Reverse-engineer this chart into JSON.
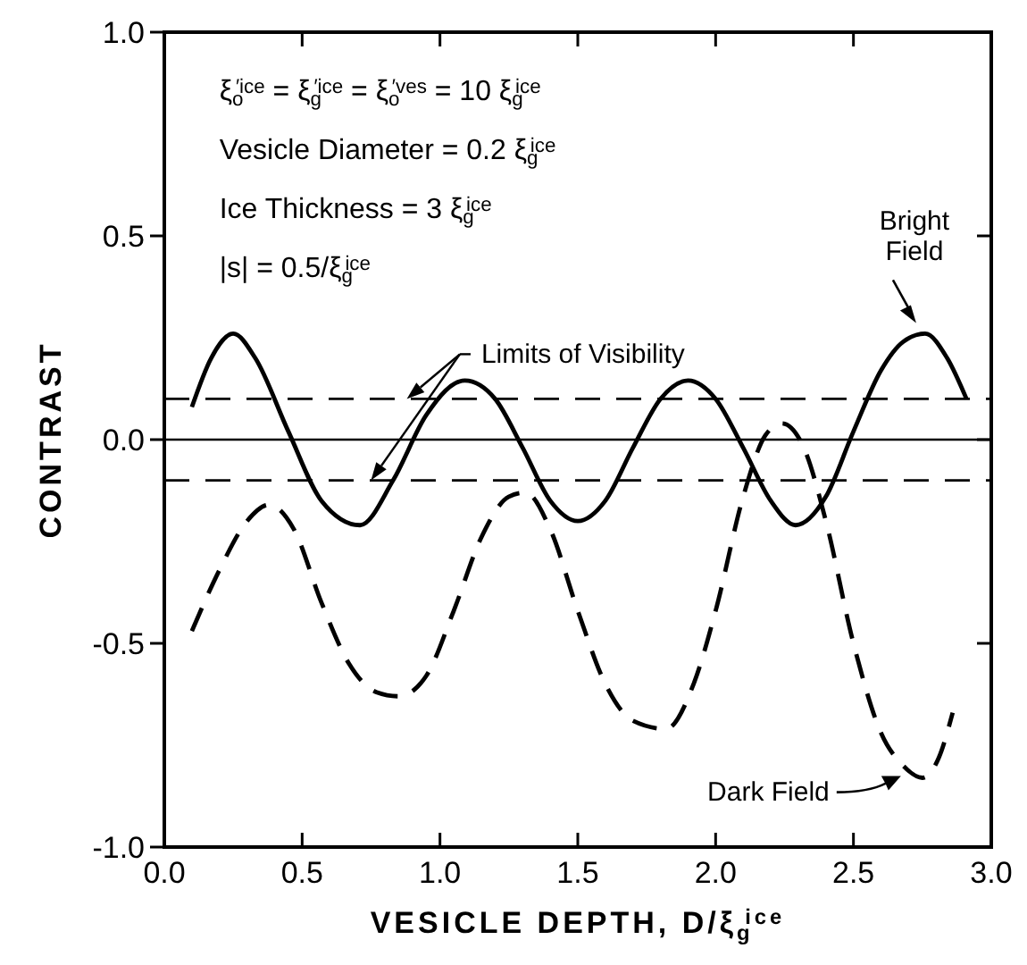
{
  "chart_data": {
    "type": "line",
    "xlabel": "VESICLE DEPTH, D/ξ$_{g}$$^{ice}$",
    "ylabel": "CONTRAST",
    "xlim": [
      0,
      3
    ],
    "ylim": [
      -1,
      1
    ],
    "xticks": [
      {
        "value": 0,
        "label": "0.0"
      },
      {
        "value": 0.5,
        "label": "0.5"
      },
      {
        "value": 1,
        "label": "1.0"
      },
      {
        "value": 1.5,
        "label": "1.5"
      },
      {
        "value": 2,
        "label": "2.0"
      },
      {
        "value": 2.5,
        "label": "2.5"
      },
      {
        "value": 3,
        "label": "3.0"
      }
    ],
    "yticks": [
      {
        "value": -1,
        "label": "-1.0"
      },
      {
        "value": -0.5,
        "label": "-0.5"
      },
      {
        "value": 0,
        "label": "0.0"
      },
      {
        "value": 0.5,
        "label": "0.5"
      },
      {
        "value": 1,
        "label": "1.0"
      }
    ],
    "grid": false,
    "legend": "right",
    "marker": "none",
    "series": [
      {
        "name": "Bright Field",
        "color": "#000000",
        "line_style": "solid",
        "x": [
          0.1,
          0.17,
          0.25,
          0.33,
          0.45,
          0.57,
          0.71,
          0.83,
          0.95,
          1.09,
          1.2,
          1.3,
          1.4,
          1.5,
          1.6,
          1.7,
          1.8,
          1.9,
          2.0,
          2.1,
          2.2,
          2.29,
          2.4,
          2.5,
          2.6,
          2.68,
          2.76,
          2.84,
          2.91
        ],
        "values": [
          0.08,
          0.2,
          0.26,
          0.2,
          0.02,
          -0.15,
          -0.21,
          -0.1,
          0.06,
          0.145,
          0.1,
          -0.02,
          -0.15,
          -0.2,
          -0.15,
          -0.02,
          0.1,
          0.145,
          0.1,
          -0.02,
          -0.15,
          -0.21,
          -0.14,
          0.02,
          0.17,
          0.24,
          0.26,
          0.2,
          0.1
        ]
      },
      {
        "name": "Dark Field",
        "color": "#000000",
        "line_style": "dashed",
        "x": [
          0.1,
          0.2,
          0.3,
          0.38,
          0.47,
          0.57,
          0.67,
          0.77,
          0.85,
          0.95,
          1.05,
          1.15,
          1.25,
          1.31,
          1.4,
          1.5,
          1.6,
          1.7,
          1.82,
          1.92,
          2.0,
          2.1,
          2.18,
          2.24,
          2.32,
          2.4,
          2.5,
          2.6,
          2.68,
          2.75,
          2.81,
          2.86
        ],
        "values": [
          -0.47,
          -0.32,
          -0.2,
          -0.16,
          -0.22,
          -0.4,
          -0.55,
          -0.62,
          -0.63,
          -0.58,
          -0.42,
          -0.24,
          -0.14,
          -0.13,
          -0.22,
          -0.42,
          -0.6,
          -0.69,
          -0.71,
          -0.6,
          -0.42,
          -0.14,
          0.01,
          0.04,
          -0.02,
          -0.2,
          -0.5,
          -0.72,
          -0.8,
          -0.83,
          -0.78,
          -0.67
        ]
      }
    ],
    "ref_lines": [
      {
        "axis": "y",
        "value": 0.1,
        "label": "Limits of Visibility",
        "line_style": "dashed"
      },
      {
        "axis": "y",
        "value": -0.1,
        "line_style": "dashed"
      },
      {
        "axis": "y",
        "value": 0,
        "line_style": "solid"
      }
    ],
    "annotations": [
      "ξ$_{o}$$^{′ice}$ = ξ$_{g}$$^{′ice}$ = ξ$_{o}$$^{′ves}$ = 10 ξ$_{g}$$^{ice}$",
      "Vesicle Diameter = 0.2 ξ$_{g}$$^{ice}$",
      "Ice  Thickness = 3 ξ$_{g}$$^{ice}$",
      "|s| = 0.5/ξ$_{g}$$^{ice}$"
    ]
  }
}
